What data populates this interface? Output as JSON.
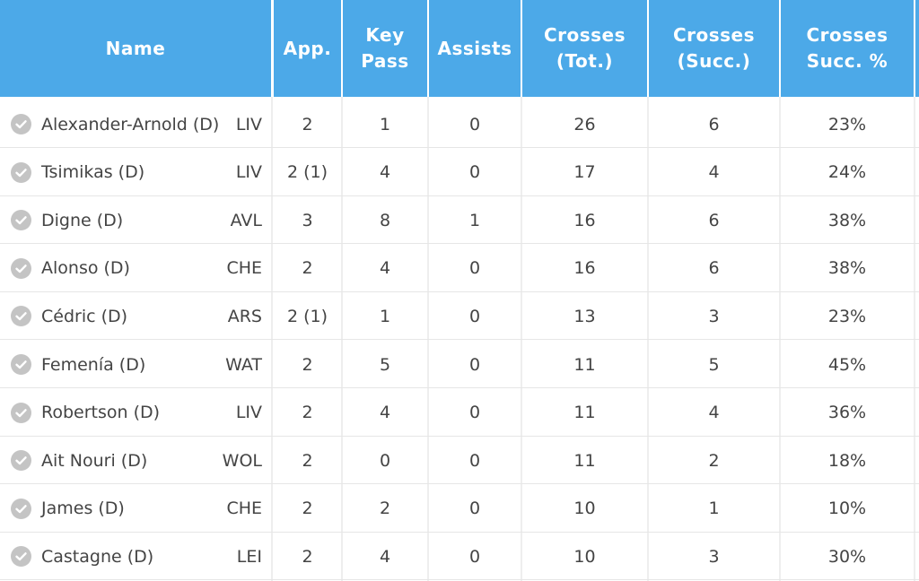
{
  "colors": {
    "header_bg": "#4ca9e8",
    "header_text": "#ffffff",
    "body_text": "#444444",
    "check_icon": "#c4c4c4"
  },
  "headers": {
    "name": "Name",
    "app": "App.",
    "key_pass": "Key\nPass",
    "assists": "Assists",
    "crosses_tot": "Crosses\n(Tot.)",
    "crosses_succ": "Crosses\n(Succ.)",
    "crosses_pct": "Crosses\nSucc. %"
  },
  "rows": [
    {
      "name": "Alexander-Arnold (D)",
      "team": "LIV",
      "app": "2",
      "key_pass": "1",
      "assists": "0",
      "crosses_tot": "26",
      "crosses_succ": "6",
      "crosses_pct": "23%"
    },
    {
      "name": "Tsimikas (D)",
      "team": "LIV",
      "app": "2 (1)",
      "key_pass": "4",
      "assists": "0",
      "crosses_tot": "17",
      "crosses_succ": "4",
      "crosses_pct": "24%"
    },
    {
      "name": "Digne (D)",
      "team": "AVL",
      "app": "3",
      "key_pass": "8",
      "assists": "1",
      "crosses_tot": "16",
      "crosses_succ": "6",
      "crosses_pct": "38%"
    },
    {
      "name": "Alonso (D)",
      "team": "CHE",
      "app": "2",
      "key_pass": "4",
      "assists": "0",
      "crosses_tot": "16",
      "crosses_succ": "6",
      "crosses_pct": "38%"
    },
    {
      "name": "Cédric (D)",
      "team": "ARS",
      "app": "2 (1)",
      "key_pass": "1",
      "assists": "0",
      "crosses_tot": "13",
      "crosses_succ": "3",
      "crosses_pct": "23%"
    },
    {
      "name": "Femenía (D)",
      "team": "WAT",
      "app": "2",
      "key_pass": "5",
      "assists": "0",
      "crosses_tot": "11",
      "crosses_succ": "5",
      "crosses_pct": "45%"
    },
    {
      "name": "Robertson (D)",
      "team": "LIV",
      "app": "2",
      "key_pass": "4",
      "assists": "0",
      "crosses_tot": "11",
      "crosses_succ": "4",
      "crosses_pct": "36%"
    },
    {
      "name": "Ait Nouri (D)",
      "team": "WOL",
      "app": "2",
      "key_pass": "0",
      "assists": "0",
      "crosses_tot": "11",
      "crosses_succ": "2",
      "crosses_pct": "18%"
    },
    {
      "name": "James (D)",
      "team": "CHE",
      "app": "2",
      "key_pass": "2",
      "assists": "0",
      "crosses_tot": "10",
      "crosses_succ": "1",
      "crosses_pct": "10%"
    },
    {
      "name": "Castagne (D)",
      "team": "LEI",
      "app": "2",
      "key_pass": "4",
      "assists": "0",
      "crosses_tot": "10",
      "crosses_succ": "3",
      "crosses_pct": "30%"
    }
  ]
}
